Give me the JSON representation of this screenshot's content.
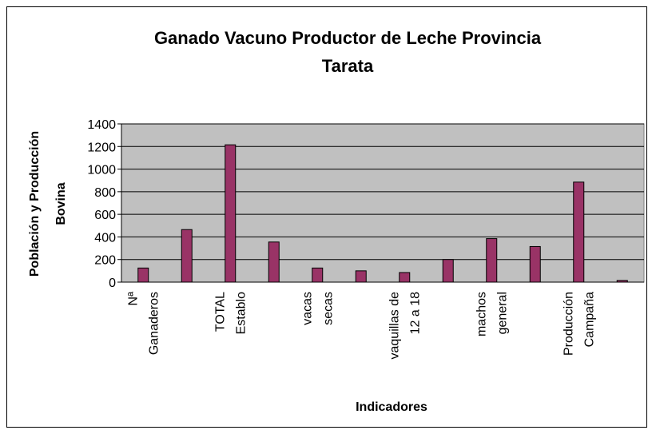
{
  "chart_data": {
    "type": "bar",
    "title": "Ganado Vacuno Productor de Leche Provincia\nTarata",
    "xlabel": "Indicadores",
    "ylabel": "Población y Producción\nBovina",
    "categories": [
      "Nª\nGanaderos",
      null,
      "TOTAL\nEstablo",
      null,
      "vacas\nsecas",
      null,
      "vaquillas de\n12 a 18",
      null,
      "machos\ngeneral",
      null,
      "Producción\nCampaña",
      null
    ],
    "values": [
      125,
      465,
      1215,
      355,
      125,
      100,
      85,
      200,
      385,
      315,
      885,
      15
    ],
    "color": "#993366",
    "ylim": [
      0,
      1400
    ],
    "yticks": [
      0,
      200,
      400,
      600,
      800,
      1000,
      1200,
      1400
    ],
    "grid": true
  }
}
